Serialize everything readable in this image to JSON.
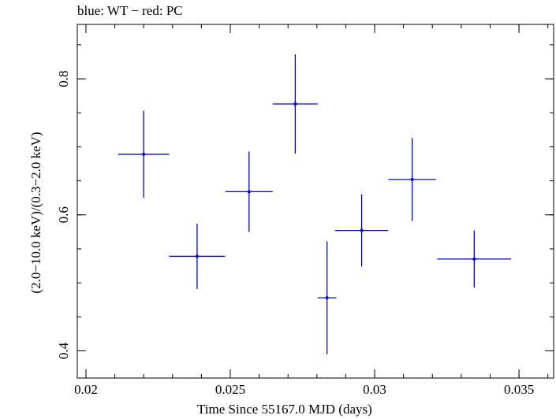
{
  "chart_data": {
    "type": "scatter",
    "title": "blue: WT − red: PC",
    "xlabel": "Time Since 55167.0 MJD (days)",
    "ylabel": "(2.0−10.0 keV)/(0.3−2.0 keV)",
    "xlim": [
      0.0197,
      0.0362
    ],
    "ylim": [
      0.36,
      0.88
    ],
    "x_ticks": [
      0.02,
      0.025,
      0.03,
      0.035
    ],
    "x_tick_labels": [
      "0.02",
      "0.025",
      "0.03",
      "0.035"
    ],
    "y_ticks": [
      0.4,
      0.6,
      0.8
    ],
    "y_tick_labels": [
      "0.4",
      "0.6",
      "0.8"
    ],
    "grid": false,
    "series": [
      {
        "color": "#0000e0",
        "points": [
          {
            "x": 0.022,
            "xerr": 0.00088,
            "y": 0.689,
            "yerr": 0.064
          },
          {
            "x": 0.02385,
            "xerr": 0.00097,
            "y": 0.539,
            "yerr": 0.048
          },
          {
            "x": 0.02565,
            "xerr": 0.00082,
            "y": 0.634,
            "yerr": 0.059
          },
          {
            "x": 0.02725,
            "xerr": 0.00078,
            "y": 0.763,
            "yerr": 0.073
          },
          {
            "x": 0.02835,
            "xerr": 0.00032,
            "y": 0.478,
            "yerr": 0.083
          },
          {
            "x": 0.02955,
            "xerr": 0.00092,
            "y": 0.577,
            "yerr": 0.053
          },
          {
            "x": 0.0313,
            "xerr": 0.00082,
            "y": 0.652,
            "yerr": 0.061
          },
          {
            "x": 0.03345,
            "xerr": 0.00128,
            "y": 0.535,
            "yerr": 0.042
          }
        ]
      }
    ]
  }
}
